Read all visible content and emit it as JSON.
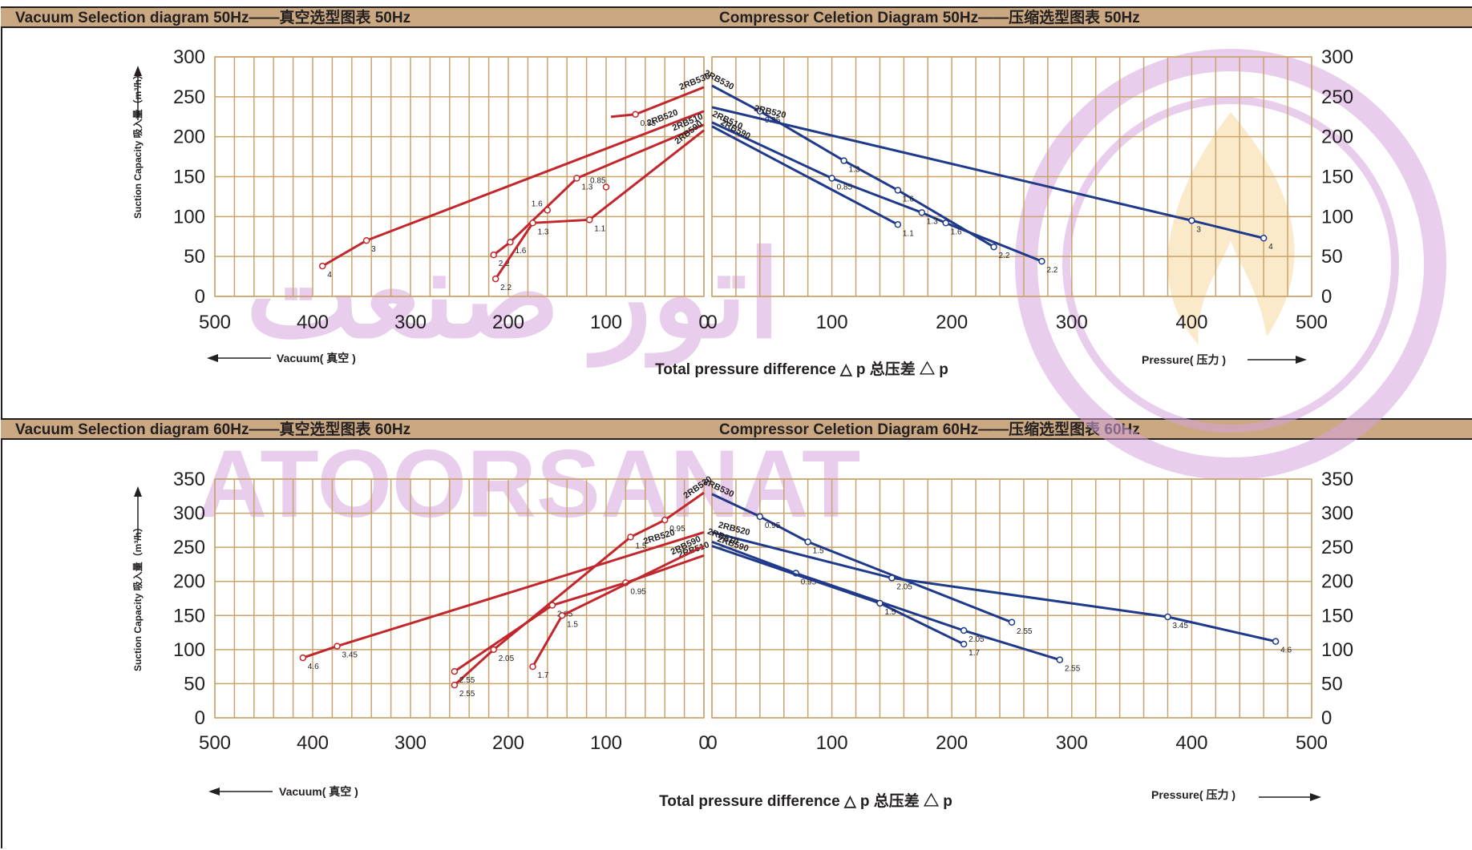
{
  "panels": [
    {
      "freq": "50Hz",
      "vacuum_title": "Vacuum Selection diagram 50Hz——真空选型图表 50Hz",
      "compressor_title": "Compressor Celetion Diagram 50Hz——压缩选型图表 50Hz",
      "y_axis_label": "Suction Capacity 吸入量（m³/h）",
      "x_axis_label": "Total pressure difference △ p 总压差 △ p",
      "vacuum_arrow_label": "Vacuum( 真空 )",
      "pressure_arrow_label": "Pressure( 压力 )"
    },
    {
      "freq": "60Hz",
      "vacuum_title": "Vacuum Selection diagram 60Hz——真空选型图表 60Hz",
      "compressor_title": "Compressor Celetion Diagram 60Hz——压缩选型图表 60Hz",
      "y_axis_label": "Suction Capacity 吸入量（m³/h）",
      "x_axis_label": "Total pressure difference △ p 总压差 △ p",
      "vacuum_arrow_label": "Vacuum( 真空 )",
      "pressure_arrow_label": "Pressure( 压力 )"
    }
  ],
  "watermark": {
    "persian": "اتور صنعت",
    "latin": "ATOORSANAT"
  },
  "colors": {
    "vacuum_line": "#c1272d",
    "compressor_line": "#1f3a8a",
    "grid": "#c9a36b",
    "header_bg": "#c9a882",
    "watermark": "#d7a6e0"
  },
  "chart_data": [
    {
      "type": "line",
      "title": "Vacuum Selection diagram 50Hz——真空选型图表 50Hz",
      "xlabel": "Vacuum( 真空 )",
      "ylabel": "Suction Capacity 吸入量（m³/h）",
      "x_reversed": true,
      "xlim": [
        0,
        500
      ],
      "ylim": [
        0,
        300
      ],
      "x_ticks": [
        500,
        400,
        300,
        200,
        100,
        0
      ],
      "y_ticks": [
        0,
        50,
        100,
        150,
        200,
        250,
        300
      ],
      "grid": true,
      "series": [
        {
          "name": "2RB530",
          "points": [
            [
              95,
              225
            ],
            [
              70,
              228
            ],
            [
              0,
              262
            ]
          ],
          "labels": [
            {
              "x": 70,
              "y": 228,
              "text": "0.85"
            }
          ]
        },
        {
          "name": "2RB520",
          "points": [
            [
              390,
              38
            ],
            [
              345,
              70
            ],
            [
              0,
              232
            ]
          ],
          "labels": [
            {
              "x": 390,
              "y": 38,
              "text": "4"
            },
            {
              "x": 345,
              "y": 70,
              "text": "3"
            }
          ]
        },
        {
          "name": "2RB510",
          "points": [
            [
              215,
              52
            ],
            [
              198,
              68
            ],
            [
              130,
              148
            ],
            [
              0,
              215
            ]
          ],
          "labels": [
            {
              "x": 215,
              "y": 52,
              "text": "2.2"
            },
            {
              "x": 198,
              "y": 68,
              "text": "1.6"
            },
            {
              "x": 130,
              "y": 148,
              "text": "1.3"
            }
          ]
        },
        {
          "name": "2RB590",
          "points": [
            [
              213,
              22
            ],
            [
              175,
              92
            ],
            [
              117,
              96
            ],
            [
              0,
              208
            ]
          ],
          "labels": [
            {
              "x": 213,
              "y": 22,
              "text": "2.2"
            },
            {
              "x": 175,
              "y": 92,
              "text": "1.3"
            },
            {
              "x": 117,
              "y": 96,
              "text": "1.1"
            }
          ]
        }
      ],
      "extra_labels": [
        {
          "x": 160,
          "y": 108,
          "text": "1.6"
        },
        {
          "x": 100,
          "y": 137,
          "text": "0.85"
        }
      ]
    },
    {
      "type": "line",
      "title": "Compressor Celetion Diagram 50Hz——压缩选型图表 50Hz",
      "xlabel": "Pressure( 压力 )",
      "ylabel": "Suction Capacity 吸入量（m³/h）",
      "xlim": [
        0,
        500
      ],
      "ylim": [
        0,
        300
      ],
      "x_ticks": [
        0,
        100,
        200,
        300,
        400,
        500
      ],
      "y_ticks": [
        0,
        50,
        100,
        150,
        200,
        250,
        300
      ],
      "grid": true,
      "series": [
        {
          "name": "2RB530",
          "points": [
            [
              0,
              264
            ],
            [
              40,
              232
            ],
            [
              110,
              170
            ],
            [
              155,
              133
            ],
            [
              235,
              62
            ]
          ],
          "labels": [
            {
              "x": 40,
              "y": 232,
              "text": "0.85"
            },
            {
              "x": 110,
              "y": 170,
              "text": "1.3"
            },
            {
              "x": 155,
              "y": 133,
              "text": "1.6"
            },
            {
              "x": 235,
              "y": 62,
              "text": "2.2"
            }
          ]
        },
        {
          "name": "2RB520",
          "points": [
            [
              0,
              237
            ],
            [
              400,
              95
            ],
            [
              460,
              73
            ]
          ],
          "labels": [
            {
              "x": 400,
              "y": 95,
              "text": "3"
            },
            {
              "x": 460,
              "y": 73,
              "text": "4"
            }
          ]
        },
        {
          "name": "2RB510",
          "points": [
            [
              0,
              218
            ],
            [
              100,
              148
            ],
            [
              175,
              105
            ],
            [
              195,
              92
            ],
            [
              275,
              44
            ]
          ],
          "labels": [
            {
              "x": 100,
              "y": 148,
              "text": "0.85"
            },
            {
              "x": 175,
              "y": 105,
              "text": "1.3"
            },
            {
              "x": 195,
              "y": 92,
              "text": "1.6"
            },
            {
              "x": 275,
              "y": 44,
              "text": "2.2"
            }
          ]
        },
        {
          "name": "2RB590",
          "points": [
            [
              0,
              213
            ],
            [
              155,
              90
            ]
          ],
          "labels": [
            {
              "x": 155,
              "y": 90,
              "text": "1.1"
            }
          ]
        }
      ]
    },
    {
      "type": "line",
      "title": "Vacuum Selection diagram 60Hz——真空选型图表 60Hz",
      "xlabel": "Vacuum( 真空 )",
      "ylabel": "Suction Capacity 吸入量（m³/h）",
      "x_reversed": true,
      "xlim": [
        0,
        500
      ],
      "ylim": [
        0,
        350
      ],
      "x_ticks": [
        500,
        400,
        300,
        200,
        100,
        0
      ],
      "y_ticks": [
        0,
        50,
        100,
        150,
        200,
        250,
        300,
        350
      ],
      "grid": true,
      "series": [
        {
          "name": "2RB530",
          "points": [
            [
              255,
              48
            ],
            [
              215,
              100
            ],
            [
              75,
              265
            ],
            [
              40,
              290
            ],
            [
              0,
              330
            ]
          ],
          "labels": [
            {
              "x": 255,
              "y": 48,
              "text": "2.55"
            },
            {
              "x": 215,
              "y": 100,
              "text": "2.05"
            },
            {
              "x": 75,
              "y": 265,
              "text": "1.5"
            },
            {
              "x": 40,
              "y": 290,
              "text": "0.95"
            }
          ]
        },
        {
          "name": "2RB520",
          "points": [
            [
              410,
              88
            ],
            [
              375,
              105
            ],
            [
              0,
              272
            ]
          ],
          "labels": [
            {
              "x": 410,
              "y": 88,
              "text": "4.6"
            },
            {
              "x": 375,
              "y": 105,
              "text": "3.45"
            }
          ]
        },
        {
          "name": "2RB510",
          "points": [
            [
              255,
              68
            ],
            [
              155,
              165
            ],
            [
              80,
              198
            ],
            [
              0,
              238
            ]
          ],
          "labels": [
            {
              "x": 255,
              "y": 68,
              "text": "2.55"
            },
            {
              "x": 155,
              "y": 165,
              "text": "2.05"
            },
            {
              "x": 80,
              "y": 198,
              "text": "0.95"
            }
          ]
        },
        {
          "name": "2RB590",
          "points": [
            [
              175,
              75
            ],
            [
              145,
              150
            ],
            [
              0,
              252
            ]
          ],
          "labels": [
            {
              "x": 175,
              "y": 75,
              "text": "1.7"
            },
            {
              "x": 145,
              "y": 150,
              "text": "1.5"
            }
          ]
        }
      ]
    },
    {
      "type": "line",
      "title": "Compressor Celetion Diagram 60Hz——压缩选型图表 60Hz",
      "xlabel": "Pressure( 压力 )",
      "ylabel": "Suction Capacity 吸入量（m³/h）",
      "xlim": [
        0,
        500
      ],
      "ylim": [
        0,
        350
      ],
      "x_ticks": [
        0,
        100,
        200,
        300,
        400,
        500
      ],
      "y_ticks": [
        0,
        50,
        100,
        150,
        200,
        250,
        300,
        350
      ],
      "grid": true,
      "series": [
        {
          "name": "2RB530",
          "points": [
            [
              0,
              328
            ],
            [
              40,
              295
            ],
            [
              80,
              258
            ],
            [
              250,
              140
            ]
          ],
          "labels": [
            {
              "x": 40,
              "y": 295,
              "text": "0.95"
            },
            {
              "x": 80,
              "y": 258,
              "text": "1.5"
            },
            {
              "x": 250,
              "y": 140,
              "text": "2.55"
            }
          ]
        },
        {
          "name": "2RB520",
          "points": [
            [
              0,
              272
            ],
            [
              150,
              205
            ],
            [
              380,
              148
            ],
            [
              470,
              112
            ]
          ],
          "labels": [
            {
              "x": 150,
              "y": 205,
              "text": "2.05"
            },
            {
              "x": 380,
              "y": 148,
              "text": "3.45"
            },
            {
              "x": 470,
              "y": 112,
              "text": "4.6"
            }
          ]
        },
        {
          "name": "2RB510",
          "points": [
            [
              0,
              258
            ],
            [
              70,
              212
            ],
            [
              210,
              128
            ],
            [
              290,
              85
            ]
          ],
          "labels": [
            {
              "x": 70,
              "y": 212,
              "text": "0.95"
            },
            {
              "x": 210,
              "y": 128,
              "text": "2.05"
            },
            {
              "x": 290,
              "y": 85,
              "text": "2.55"
            }
          ]
        },
        {
          "name": "2RB590",
          "points": [
            [
              0,
              252
            ],
            [
              140,
              168
            ],
            [
              210,
              108
            ]
          ],
          "labels": [
            {
              "x": 140,
              "y": 168,
              "text": "1.5"
            },
            {
              "x": 210,
              "y": 108,
              "text": "1.7"
            }
          ]
        }
      ]
    }
  ]
}
